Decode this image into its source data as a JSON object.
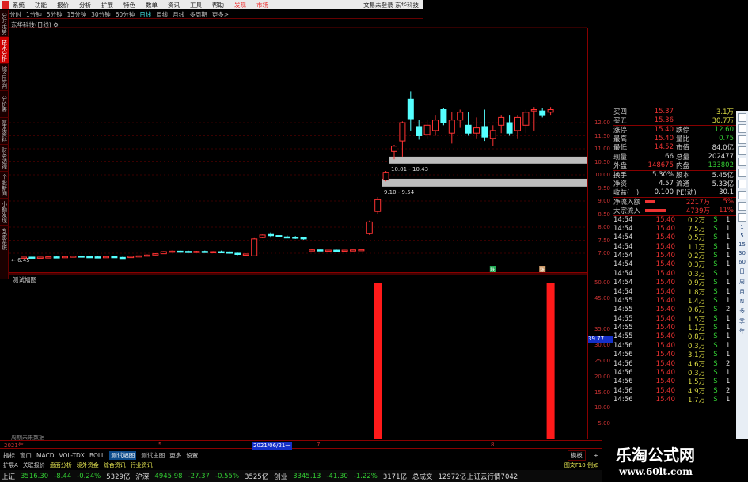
{
  "menu": {
    "items": [
      "系统",
      "功能",
      "报价",
      "分析",
      "扩展",
      "特色",
      "数单",
      "资讯",
      "工具",
      "帮助"
    ],
    "red_items": [
      "发现",
      "市场"
    ],
    "user": "文易未登录 东华科技"
  },
  "periods": [
    "分时",
    "1分钟",
    "5分钟",
    "15分钟",
    "30分钟",
    "60分钟",
    "日线",
    "周线",
    "月线",
    "多周期",
    "更多>"
  ],
  "active_period": "日线",
  "sidebar": [
    "分时走势",
    "技术分析",
    "综合研判",
    "分价表",
    "基本资料",
    "财务透视",
    "个股新闻",
    "小额发现",
    "专家系统"
  ],
  "stock_title": "东华科技(日线) ⚙",
  "chart_data": {
    "type": "candlestick",
    "price_axis": [
      12.0,
      11.5,
      11.0,
      10.5,
      10.0,
      9.5,
      9.0,
      8.5,
      8.0,
      7.5,
      7.0
    ],
    "ylim": [
      6.5,
      13.6
    ],
    "colors": {
      "up": "#ff3333",
      "down": "#55ffff",
      "band": "#bdbdbd",
      "indicator": "#ff1a1a"
    },
    "bands": [
      {
        "range": [
          10.43,
          10.7
        ],
        "label": "10.01 - 10.43"
      },
      {
        "range": [
          9.55,
          9.85
        ],
        "label": "9.10 - 9.54"
      }
    ],
    "left_label": "← 6.45",
    "candles": [
      [
        6.84,
        6.86,
        6.82,
        6.85
      ],
      [
        6.85,
        6.87,
        6.83,
        6.84
      ],
      [
        6.84,
        6.86,
        6.83,
        6.85
      ],
      [
        6.85,
        6.87,
        6.84,
        6.86
      ],
      [
        6.86,
        6.88,
        6.84,
        6.85
      ],
      [
        6.85,
        6.88,
        6.84,
        6.87
      ],
      [
        6.87,
        6.9,
        6.85,
        6.89
      ],
      [
        6.89,
        6.9,
        6.86,
        6.87
      ],
      [
        6.87,
        6.89,
        6.85,
        6.86
      ],
      [
        6.86,
        6.88,
        6.84,
        6.85
      ],
      [
        6.85,
        6.88,
        6.84,
        6.87
      ],
      [
        6.87,
        6.89,
        6.83,
        6.84
      ],
      [
        6.84,
        6.86,
        6.82,
        6.83
      ],
      [
        6.83,
        6.9,
        6.82,
        6.88
      ],
      [
        6.88,
        6.92,
        6.86,
        6.9
      ],
      [
        6.9,
        6.95,
        6.88,
        6.93
      ],
      [
        6.93,
        7.0,
        6.92,
        6.98
      ],
      [
        6.98,
        7.08,
        6.97,
        7.06
      ],
      [
        7.06,
        7.1,
        7.03,
        7.08
      ],
      [
        7.08,
        7.12,
        7.05,
        7.07
      ],
      [
        7.07,
        7.1,
        7.03,
        7.05
      ],
      [
        7.05,
        7.09,
        7.03,
        7.07
      ],
      [
        7.07,
        7.1,
        7.02,
        7.04
      ],
      [
        7.04,
        7.08,
        7.01,
        7.06
      ],
      [
        7.06,
        7.1,
        7.03,
        7.05
      ],
      [
        7.05,
        7.07,
        6.98,
        7.0
      ],
      [
        7.0,
        7.02,
        6.93,
        6.96
      ],
      [
        6.96,
        6.99,
        6.92,
        6.97
      ],
      [
        6.9,
        7.58,
        6.88,
        7.55
      ],
      [
        7.6,
        7.72,
        7.58,
        7.7
      ],
      [
        7.72,
        7.8,
        7.6,
        7.7
      ],
      [
        7.68,
        7.7,
        7.63,
        7.65
      ],
      [
        7.63,
        7.68,
        7.58,
        7.62
      ],
      [
        7.62,
        7.66,
        7.55,
        7.6
      ],
      [
        7.6,
        7.62,
        7.52,
        7.55
      ],
      [
        7.12,
        7.15,
        7.1,
        7.13
      ],
      [
        7.13,
        7.14,
        7.1,
        7.11
      ],
      [
        7.11,
        7.13,
        7.09,
        7.12
      ],
      [
        7.12,
        7.14,
        7.1,
        7.11
      ],
      [
        7.11,
        7.13,
        7.08,
        7.12
      ],
      [
        7.12,
        7.14,
        7.1,
        7.13
      ],
      [
        7.13,
        7.15,
        7.11,
        7.14
      ],
      [
        7.75,
        8.25,
        7.7,
        8.2
      ],
      [
        8.6,
        9.15,
        8.5,
        9.05
      ],
      [
        9.8,
        10.15,
        9.75,
        10.1
      ],
      [
        10.9,
        11.15,
        10.6,
        11.1
      ],
      [
        11.3,
        12.05,
        10.7,
        12.0
      ],
      [
        12.9,
        13.2,
        11.7,
        12.15
      ],
      [
        11.85,
        12.1,
        11.35,
        11.5
      ],
      [
        11.55,
        12.1,
        11.4,
        11.9
      ],
      [
        11.7,
        12.3,
        11.5,
        12.1
      ],
      [
        12.5,
        12.55,
        11.9,
        12.0
      ],
      [
        11.6,
        12.4,
        11.2,
        12.1
      ],
      [
        12.1,
        12.5,
        11.8,
        12.4
      ],
      [
        11.9,
        12.4,
        11.5,
        11.6
      ],
      [
        11.6,
        12.2,
        11.4,
        11.8
      ],
      [
        11.85,
        12.5,
        11.3,
        11.45
      ],
      [
        11.4,
        11.9,
        11.1,
        11.7
      ],
      [
        11.9,
        12.3,
        11.6,
        12.2
      ],
      [
        12.0,
        12.3,
        11.5,
        11.6
      ],
      [
        11.7,
        12.3,
        11.4,
        12.2
      ],
      [
        11.9,
        12.5,
        11.6,
        12.4
      ],
      [
        12.45,
        12.6,
        11.7,
        12.5
      ],
      [
        12.45,
        12.55,
        12.2,
        12.3
      ],
      [
        12.4,
        12.6,
        12.3,
        12.5
      ]
    ],
    "indicator": {
      "title": "测试幅图",
      "axis": [
        "50.00",
        "45.00",
        "35.00",
        "30.00",
        "25.00",
        "20.00",
        "15.00",
        "10.00",
        "5.00"
      ],
      "current": "39.77",
      "ylim": [
        0,
        50
      ],
      "bars": [
        {
          "index": 43,
          "value": 50
        },
        {
          "index": 64,
          "value": 50
        }
      ],
      "signals": [
        {
          "index": 57,
          "label": "跌"
        },
        {
          "index": 63,
          "label": "涨"
        }
      ],
      "footnote": "周期未来数据"
    }
  },
  "date_axis": {
    "year": "2021年",
    "m5": "5",
    "cursor": "2021/06/21一",
    "m7": "7",
    "m8": "8"
  },
  "tabs": {
    "items": [
      "指标",
      "窗口",
      "MACD",
      "VOL-TDX",
      "BOLL",
      "测试幅图",
      "测试主图",
      "更多",
      "设置"
    ],
    "active": "测试幅图",
    "template": "模板",
    "plus": "+"
  },
  "ext": {
    "items": [
      "扩展A",
      "关联报价"
    ],
    "yellow": [
      "盘面分析",
      "境外资金",
      "综合资讯",
      "行业资讯"
    ],
    "right": "图文F10 例如"
  },
  "status": {
    "sh_label": "上证",
    "sh": "3516.30",
    "sh_chg": "-8.44",
    "sh_pct": "-0.24%",
    "sh_amt": "5329亿",
    "hs_label": "沪深",
    "hs": "4945.98",
    "hs_chg": "-27.37",
    "hs_pct": "-0.55%",
    "hs_amt": "3525亿",
    "cy_label": "创业",
    "cy": "3345.13",
    "cy_chg": "-41.30",
    "cy_pct": "-1.22%",
    "cy_amt": "3171亿",
    "total_label": "总成交",
    "total": "12972亿",
    "cloud": "上证云行情7042"
  },
  "quote": {
    "bids": [
      {
        "l": "买四",
        "p": "15.37",
        "v": "3.1万"
      },
      {
        "l": "买五",
        "p": "15.36",
        "v": "30.7万"
      }
    ],
    "stats": [
      [
        "涨停",
        "15.40",
        "跌停",
        "12.60"
      ],
      [
        "最高",
        "15.40",
        "量比",
        "0.75"
      ],
      [
        "最低",
        "14.52",
        "市值",
        "84.0亿"
      ],
      [
        "现量",
        "66",
        "总量",
        "202477"
      ],
      [
        "外盘",
        "148675",
        "内盘",
        "133802"
      ],
      [
        "换手",
        "5.30%",
        "股本",
        "5.45亿"
      ],
      [
        "净资",
        "4.57",
        "流通",
        "5.33亿"
      ],
      [
        "收益(一)",
        "0.100",
        "PE(动)",
        "30.1"
      ]
    ],
    "flows": [
      {
        "l": "净流入额",
        "v": "2217万",
        "p": "5%",
        "bar": 0.3
      },
      {
        "l": "大宗流入",
        "v": "4739万",
        "p": "11%",
        "bar": 0.65
      }
    ],
    "ticks": [
      [
        "14:54",
        "15.40",
        "0.2万",
        "S",
        "1"
      ],
      [
        "14:54",
        "15.40",
        "7.5万",
        "S",
        "1"
      ],
      [
        "14:54",
        "15.40",
        "0.5万",
        "S",
        "1"
      ],
      [
        "14:54",
        "15.40",
        "1.1万",
        "S",
        "1"
      ],
      [
        "14:54",
        "15.40",
        "0.2万",
        "S",
        "1"
      ],
      [
        "14:54",
        "15.40",
        "0.3万",
        "S",
        "1"
      ],
      [
        "14:54",
        "15.40",
        "0.3万",
        "S",
        "1"
      ],
      [
        "14:54",
        "15.40",
        "0.9万",
        "S",
        "1"
      ],
      [
        "14:54",
        "15.40",
        "1.8万",
        "S",
        "1"
      ],
      [
        "14:55",
        "15.40",
        "1.4万",
        "S",
        "1"
      ],
      [
        "14:55",
        "15.40",
        "0.6万",
        "S",
        "2"
      ],
      [
        "14:55",
        "15.40",
        "1.5万",
        "S",
        "1"
      ],
      [
        "14:55",
        "15.40",
        "1.1万",
        "S",
        "1"
      ],
      [
        "14:55",
        "15.40",
        "0.8万",
        "S",
        "1"
      ],
      [
        "14:56",
        "15.40",
        "0.3万",
        "S",
        "1"
      ],
      [
        "14:56",
        "15.40",
        "3.1万",
        "S",
        "1"
      ],
      [
        "14:56",
        "15.40",
        "4.6万",
        "S",
        "2"
      ],
      [
        "14:56",
        "15.40",
        "0.3万",
        "S",
        "1"
      ],
      [
        "14:56",
        "15.40",
        "1.5万",
        "S",
        "1"
      ],
      [
        "14:56",
        "15.40",
        "4.9万",
        "S",
        "2"
      ],
      [
        "14:56",
        "15.40",
        "1.7万",
        "S",
        "1"
      ]
    ]
  },
  "iconstrip": [
    "1",
    "5",
    "15",
    "30",
    "60",
    "日",
    "周",
    "月",
    "N",
    "多",
    "季",
    "年"
  ],
  "watermark": {
    "cn": "乐淘公式网",
    "url": "www.60lt.com"
  }
}
